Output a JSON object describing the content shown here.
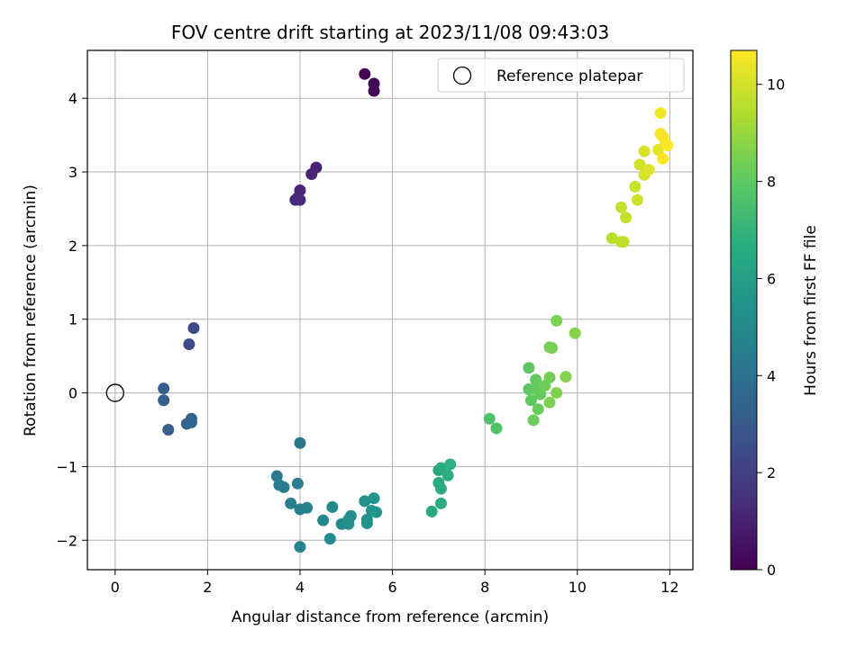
{
  "chart_data": {
    "type": "scatter",
    "title": "FOV centre drift starting at 2023/11/08 09:43:03",
    "xlabel": "Angular distance from reference (arcmin)",
    "ylabel": "Rotation from reference (arcmin)",
    "xlim": [
      -0.6,
      12.5
    ],
    "ylim": [
      -2.4,
      4.65
    ],
    "xticks": [
      0,
      2,
      4,
      6,
      8,
      10,
      12
    ],
    "yticks": [
      -2,
      -1,
      0,
      1,
      2,
      3,
      4
    ],
    "grid": true,
    "legend": {
      "location": "top-right",
      "entries": [
        "Reference platepar"
      ]
    },
    "reference_point": {
      "x": 0,
      "y": 0
    },
    "colorbar": {
      "label": "Hours from first FF file",
      "colormap": "viridis",
      "range": [
        0,
        10.7
      ],
      "ticks": [
        0,
        2,
        4,
        6,
        8,
        10
      ]
    },
    "points": [
      {
        "x": 5.4,
        "y": 4.33,
        "c": 0.05
      },
      {
        "x": 5.6,
        "y": 4.2,
        "c": 0.1
      },
      {
        "x": 5.6,
        "y": 4.1,
        "c": 0.15
      },
      {
        "x": 4.35,
        "y": 3.06,
        "c": 1.0
      },
      {
        "x": 4.25,
        "y": 2.97,
        "c": 1.05
      },
      {
        "x": 4.0,
        "y": 2.75,
        "c": 1.1
      },
      {
        "x": 3.95,
        "y": 2.65,
        "c": 1.15
      },
      {
        "x": 3.9,
        "y": 2.62,
        "c": 1.2
      },
      {
        "x": 4.0,
        "y": 2.62,
        "c": 1.25
      },
      {
        "x": 1.7,
        "y": 0.88,
        "c": 2.3
      },
      {
        "x": 1.6,
        "y": 0.66,
        "c": 2.4
      },
      {
        "x": 1.05,
        "y": 0.06,
        "c": 3.2
      },
      {
        "x": 1.05,
        "y": -0.1,
        "c": 3.25
      },
      {
        "x": 1.15,
        "y": -0.5,
        "c": 3.3
      },
      {
        "x": 1.55,
        "y": -0.42,
        "c": 3.35
      },
      {
        "x": 1.65,
        "y": -0.35,
        "c": 3.4
      },
      {
        "x": 1.65,
        "y": -0.4,
        "c": 3.45
      },
      {
        "x": 4.0,
        "y": -0.68,
        "c": 4.3
      },
      {
        "x": 3.5,
        "y": -1.13,
        "c": 4.4
      },
      {
        "x": 3.55,
        "y": -1.25,
        "c": 4.45
      },
      {
        "x": 3.65,
        "y": -1.28,
        "c": 4.5
      },
      {
        "x": 3.95,
        "y": -1.23,
        "c": 4.55
      },
      {
        "x": 3.8,
        "y": -1.5,
        "c": 4.6
      },
      {
        "x": 4.0,
        "y": -1.58,
        "c": 4.65
      },
      {
        "x": 4.15,
        "y": -1.56,
        "c": 4.7
      },
      {
        "x": 4.0,
        "y": -2.09,
        "c": 4.75
      },
      {
        "x": 4.5,
        "y": -1.73,
        "c": 5.0
      },
      {
        "x": 4.7,
        "y": -1.55,
        "c": 5.05
      },
      {
        "x": 4.65,
        "y": -1.98,
        "c": 5.1
      },
      {
        "x": 4.9,
        "y": -1.78,
        "c": 5.15
      },
      {
        "x": 5.05,
        "y": -1.72,
        "c": 5.2
      },
      {
        "x": 5.1,
        "y": -1.67,
        "c": 5.25
      },
      {
        "x": 5.05,
        "y": -1.78,
        "c": 5.3
      },
      {
        "x": 5.4,
        "y": -1.47,
        "c": 5.35
      },
      {
        "x": 5.45,
        "y": -1.72,
        "c": 5.4
      },
      {
        "x": 5.45,
        "y": -1.77,
        "c": 5.45
      },
      {
        "x": 5.55,
        "y": -1.6,
        "c": 5.5
      },
      {
        "x": 5.6,
        "y": -1.43,
        "c": 5.55
      },
      {
        "x": 5.65,
        "y": -1.62,
        "c": 5.6
      },
      {
        "x": 6.85,
        "y": -1.61,
        "c": 6.4
      },
      {
        "x": 7.0,
        "y": -1.05,
        "c": 6.45
      },
      {
        "x": 7.05,
        "y": -1.02,
        "c": 6.5
      },
      {
        "x": 7.0,
        "y": -1.22,
        "c": 6.55
      },
      {
        "x": 7.05,
        "y": -1.3,
        "c": 6.6
      },
      {
        "x": 7.05,
        "y": -1.5,
        "c": 6.65
      },
      {
        "x": 7.2,
        "y": -1.12,
        "c": 6.7
      },
      {
        "x": 7.25,
        "y": -0.97,
        "c": 6.75
      },
      {
        "x": 8.1,
        "y": -0.35,
        "c": 7.7
      },
      {
        "x": 8.25,
        "y": -0.48,
        "c": 7.75
      },
      {
        "x": 8.95,
        "y": 0.34,
        "c": 7.9
      },
      {
        "x": 8.95,
        "y": 0.05,
        "c": 7.95
      },
      {
        "x": 9.0,
        "y": -0.1,
        "c": 8.0
      },
      {
        "x": 9.1,
        "y": 0.18,
        "c": 8.05
      },
      {
        "x": 9.1,
        "y": 0.05,
        "c": 8.1
      },
      {
        "x": 9.2,
        "y": -0.02,
        "c": 8.15
      },
      {
        "x": 9.15,
        "y": -0.22,
        "c": 8.2
      },
      {
        "x": 9.05,
        "y": -0.37,
        "c": 8.25
      },
      {
        "x": 9.3,
        "y": 0.1,
        "c": 8.3
      },
      {
        "x": 9.4,
        "y": 0.21,
        "c": 8.35
      },
      {
        "x": 9.4,
        "y": 0.62,
        "c": 8.4
      },
      {
        "x": 9.45,
        "y": 0.61,
        "c": 8.45
      },
      {
        "x": 9.55,
        "y": 0.98,
        "c": 8.5
      },
      {
        "x": 9.4,
        "y": -0.13,
        "c": 8.55
      },
      {
        "x": 9.55,
        "y": 0.0,
        "c": 8.6
      },
      {
        "x": 9.75,
        "y": 0.22,
        "c": 8.65
      },
      {
        "x": 9.95,
        "y": 0.81,
        "c": 8.7
      },
      {
        "x": 10.75,
        "y": 2.1,
        "c": 9.6
      },
      {
        "x": 10.95,
        "y": 2.05,
        "c": 9.65
      },
      {
        "x": 11.0,
        "y": 2.05,
        "c": 9.7
      },
      {
        "x": 10.95,
        "y": 2.52,
        "c": 9.75
      },
      {
        "x": 11.05,
        "y": 2.38,
        "c": 9.8
      },
      {
        "x": 11.25,
        "y": 2.8,
        "c": 9.85
      },
      {
        "x": 11.3,
        "y": 2.62,
        "c": 9.9
      },
      {
        "x": 11.35,
        "y": 3.1,
        "c": 9.95
      },
      {
        "x": 11.45,
        "y": 2.96,
        "c": 10.0
      },
      {
        "x": 11.45,
        "y": 3.28,
        "c": 10.1
      },
      {
        "x": 11.55,
        "y": 3.03,
        "c": 10.15
      },
      {
        "x": 11.75,
        "y": 3.3,
        "c": 10.3
      },
      {
        "x": 11.8,
        "y": 3.8,
        "c": 10.5
      },
      {
        "x": 11.8,
        "y": 3.52,
        "c": 10.55
      },
      {
        "x": 11.85,
        "y": 3.48,
        "c": 10.6
      },
      {
        "x": 11.9,
        "y": 3.4,
        "c": 10.62
      },
      {
        "x": 11.95,
        "y": 3.36,
        "c": 10.65
      },
      {
        "x": 11.85,
        "y": 3.18,
        "c": 10.7
      }
    ]
  }
}
